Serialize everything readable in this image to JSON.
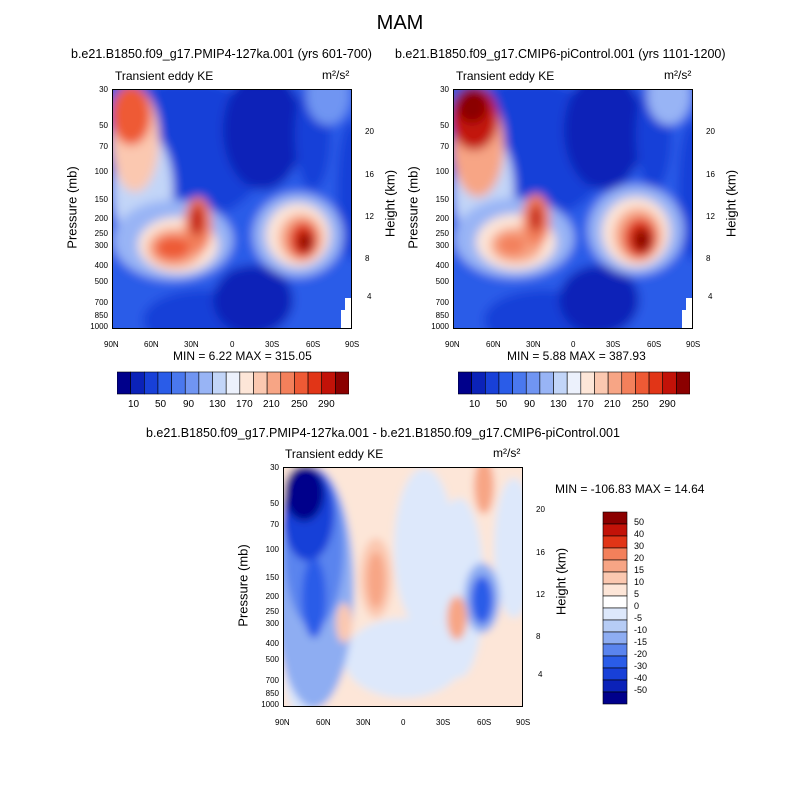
{
  "title": "MAM",
  "panels": [
    {
      "id": "p1",
      "subtitle": "b.e21.B1850.f09_g17.PMIP4-127ka.001 (yrs 601-700)",
      "left_label": "Transient eddy KE",
      "unit_label": "m²/s²",
      "stats": "MIN =   6.22  MAX = 315.05",
      "y_label": "Pressure (mb)",
      "y2_label": "Height (km)"
    },
    {
      "id": "p2",
      "subtitle": "b.e21.B1850.f09_g17.CMIP6-piControl.001 (yrs 1101-1200)",
      "left_label": "Transient eddy KE",
      "unit_label": "m²/s²",
      "stats": "MIN =   5.88  MAX = 387.93",
      "y_label": "Pressure (mb)",
      "y2_label": "Height (km)"
    },
    {
      "id": "p3",
      "subtitle": "b.e21.B1850.f09_g17.PMIP4-127ka.001 - b.e21.B1850.f09_g17.CMIP6-piControl.001",
      "left_label": "Transient eddy KE",
      "unit_label": "m²/s²",
      "stats": "MIN = -106.83  MAX =  14.64",
      "y_label": "Pressure (mb)",
      "y2_label": "Height (km)"
    }
  ],
  "axes": {
    "x_ticks": [
      "90N",
      "60N",
      "30N",
      "0",
      "30S",
      "60S",
      "90S"
    ],
    "p_ticks": [
      "30",
      "50",
      "70",
      "100",
      "150",
      "200",
      "250",
      "300",
      "400",
      "500",
      "700",
      "850",
      "1000"
    ],
    "z_ticks": [
      "20",
      "16",
      "12",
      "8",
      "4"
    ]
  },
  "colorbar_top": {
    "labels": [
      "10",
      "50",
      "90",
      "130",
      "170",
      "210",
      "250",
      "290"
    ],
    "colors": [
      "#00008b",
      "#0b22b8",
      "#1840d8",
      "#2a5ce8",
      "#4a78ee",
      "#7095f2",
      "#98b4f5",
      "#c2d5f8",
      "#ecf1fc",
      "#fde6d8",
      "#fbc8b0",
      "#f7a585",
      "#f3805b",
      "#ee5a35",
      "#e13517",
      "#c21208",
      "#8b0000"
    ]
  },
  "colorbar_diff": {
    "labels": [
      "50",
      "40",
      "30",
      "20",
      "15",
      "10",
      "5",
      "0",
      "-5",
      "-10",
      "-15",
      "-20",
      "-30",
      "-40",
      "-50"
    ],
    "colors": [
      "#8b0000",
      "#c21208",
      "#e13517",
      "#f3805b",
      "#f7a585",
      "#fbc8b0",
      "#fde6d8",
      "#ffffff",
      "#dde8fb",
      "#b6ccf5",
      "#8eadf2",
      "#5a84ee",
      "#2a5ce8",
      "#1840d8",
      "#0b22b8",
      "#00008b"
    ]
  },
  "chart_data": [
    {
      "type": "heatmap",
      "title": "Transient eddy KE",
      "subtitle": "b.e21.B1850.f09_g17.PMIP4-127ka.001 (yrs 601-700)",
      "xlabel": "",
      "ylabel": "Pressure (mb)",
      "y2label": "Height (km)",
      "units": "m2/s2",
      "x_range": [
        "90N",
        "90S"
      ],
      "y_range": [
        1000,
        30
      ],
      "y_scale": "log",
      "contour_levels": [
        10,
        30,
        50,
        70,
        90,
        110,
        130,
        150,
        170,
        190,
        210,
        230,
        250,
        270,
        290,
        310
      ],
      "min": 6.22,
      "max": 315.05,
      "features": [
        {
          "lat": "78N",
          "pressure": 35,
          "value": 270
        },
        {
          "lat": "45N",
          "pressure": 270,
          "value": 250
        },
        {
          "lat": "28N",
          "pressure": 210,
          "value": 230
        },
        {
          "lat": "52S",
          "pressure": 280,
          "value": 300
        }
      ]
    },
    {
      "type": "heatmap",
      "title": "Transient eddy KE",
      "subtitle": "b.e21.B1850.f09_g17.CMIP6-piControl.001 (yrs 1101-1200)",
      "xlabel": "",
      "ylabel": "Pressure (mb)",
      "y2label": "Height (km)",
      "units": "m2/s2",
      "x_range": [
        "90N",
        "90S"
      ],
      "y_range": [
        1000,
        30
      ],
      "y_scale": "log",
      "contour_levels": [
        10,
        30,
        50,
        70,
        90,
        110,
        130,
        150,
        170,
        190,
        210,
        230,
        250,
        270,
        290,
        310
      ],
      "min": 5.88,
      "max": 387.93,
      "features": [
        {
          "lat": "78N",
          "pressure": 35,
          "value": 380
        },
        {
          "lat": "45N",
          "pressure": 250,
          "value": 230
        },
        {
          "lat": "28N",
          "pressure": 200,
          "value": 240
        },
        {
          "lat": "50S",
          "pressure": 270,
          "value": 320
        }
      ]
    },
    {
      "type": "heatmap",
      "title": "Transient eddy KE",
      "subtitle": "b.e21.B1850.f09_g17.PMIP4-127ka.001 - b.e21.B1850.f09_g17.CMIP6-piControl.001",
      "xlabel": "",
      "ylabel": "Pressure (mb)",
      "y2label": "Height (km)",
      "units": "m2/s2",
      "x_range": [
        "90N",
        "90S"
      ],
      "y_range": [
        1000,
        30
      ],
      "y_scale": "log",
      "contour_levels": [
        -50,
        -40,
        -30,
        -20,
        -15,
        -10,
        -5,
        0,
        5,
        10,
        15,
        20,
        30,
        40,
        50
      ],
      "min": -106.83,
      "max": 14.64,
      "features": [
        {
          "lat": "80N",
          "pressure": 35,
          "value": -55
        },
        {
          "lat": "70N",
          "pressure": 150,
          "value": -20
        },
        {
          "lat": "20N",
          "pressure": 170,
          "value": 12
        },
        {
          "lat": "55S",
          "pressure": 210,
          "value": -35
        },
        {
          "lat": "37S",
          "pressure": 300,
          "value": 10
        },
        {
          "lat": "65S",
          "pressure": 45,
          "value": 10
        }
      ]
    }
  ]
}
